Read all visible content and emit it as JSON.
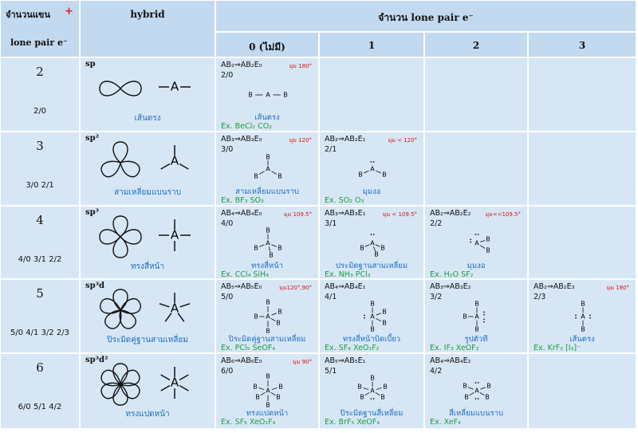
{
  "header": {
    "arms_line1": "จำนวนแขน",
    "plus": "+",
    "arms_line2": "lone pair e⁻",
    "hybrid": "hybrid",
    "lone_pair": "จำนวน lone pair e⁻",
    "columns": [
      "0 (ไม่มี)",
      "1",
      "2",
      "3"
    ]
  },
  "atoms": {
    "central": "A",
    "ligand": "B"
  },
  "rows": [
    {
      "steric": "2",
      "combos": "2/0",
      "hybrid": "sp",
      "shape": "เส้นตรง",
      "cells": [
        {
          "formula": "AB₂⇒AB₂E₀",
          "angle": "มุม 180°",
          "ratio": "2/0",
          "shape": "เส้นตรง",
          "example": "Ex. BeCl₂  CO₂"
        },
        null,
        null,
        null
      ]
    },
    {
      "steric": "3",
      "combos": "3/0  2/1",
      "hybrid": "sp²",
      "shape": "สามเหลี่ยมแบนราบ",
      "cells": [
        {
          "formula": "AB₃⇒AB₃E₀",
          "angle": "มุม 120°",
          "ratio": "3/0",
          "shape": "สามเหลี่ยมแบนราบ",
          "example": "Ex. BF₃  SO₃"
        },
        {
          "formula": "AB₂⇒AB₂E₁",
          "angle": "มุม < 120°",
          "ratio": "2/1",
          "shape": "มุมงอ",
          "example": "Ex. SO₂  O₃"
        },
        null,
        null
      ]
    },
    {
      "steric": "4",
      "combos": "4/0  3/1  2/2",
      "hybrid": "sp³",
      "shape": "ทรงสี่หน้า",
      "cells": [
        {
          "formula": "AB₄⇒AB₄E₀",
          "angle": "มุม 109.5°",
          "ratio": "4/0",
          "shape": "ทรงสี่หน้า",
          "example": "Ex. CCl₄  SiH₄"
        },
        {
          "formula": "AB₃⇒AB₃E₁",
          "angle": "มุม < 109.5°",
          "ratio": "3/1",
          "shape": "ประมิดฐานสามเหลี่ยม",
          "example": "Ex. NH₃  PCl₃"
        },
        {
          "formula": "AB₂⇒AB₂E₂",
          "angle": "มุม<<109.5°",
          "ratio": "2/2",
          "shape": "มุมงอ",
          "example": "Ex. H₂O  SF₂"
        },
        null
      ]
    },
    {
      "steric": "5",
      "combos": "5/0 4/1 3/2 2/3",
      "hybrid": "sp³d",
      "shape": "ปิระมิดคู่ฐานสามเหลี่ยม",
      "cells": [
        {
          "formula": "AB₅⇒AB₅E₀",
          "angle": "มุม120°,90°",
          "ratio": "5/0",
          "shape": "ปิระมิดคู่ฐานสามเหลี่ยม",
          "example": "Ex. PCl₅  SeOF₄"
        },
        {
          "formula": "AB₄⇒AB₄E₁",
          "ratio": "4/1",
          "shape": "ทรงสี่หน้าบิดเบี้ยว",
          "example": "Ex. SF₄  XeO₂F₂"
        },
        {
          "formula": "AB₃⇒AB₃E₂",
          "ratio": "3/2",
          "shape": "รูปตัวที",
          "example": "Ex. IF₃  XeOF₂"
        },
        {
          "formula": "AB₂⇒AB₂E₃",
          "angle": "มุม 180°",
          "ratio": "2/3",
          "shape": "เส้นตรง",
          "example": "Ex. KrF₂  [I₃]⁻"
        }
      ]
    },
    {
      "steric": "6",
      "combos": "6/0 5/1 4/2",
      "hybrid": "sp³d²",
      "shape": "ทรงแปดหน้า",
      "cells": [
        {
          "formula": "AB₆⇒AB₆E₀",
          "angle": "มุม 90°",
          "ratio": "6/0",
          "shape": "ทรงแปดหน้า",
          "example": "Ex. SF₆  XeO₂F₄"
        },
        {
          "formula": "AB₅⇒AB₅E₁",
          "ratio": "5/1",
          "shape": "ปิระมิดฐานสี่เหลี่ยม",
          "example": "Ex. BrF₅  XeOF₄"
        },
        {
          "formula": "AB₄⇒AB₄E₂",
          "ratio": "4/2",
          "shape": "สี่เหลี่ยมแบนราบ",
          "example": "Ex. XeF₄"
        },
        null
      ]
    }
  ]
}
